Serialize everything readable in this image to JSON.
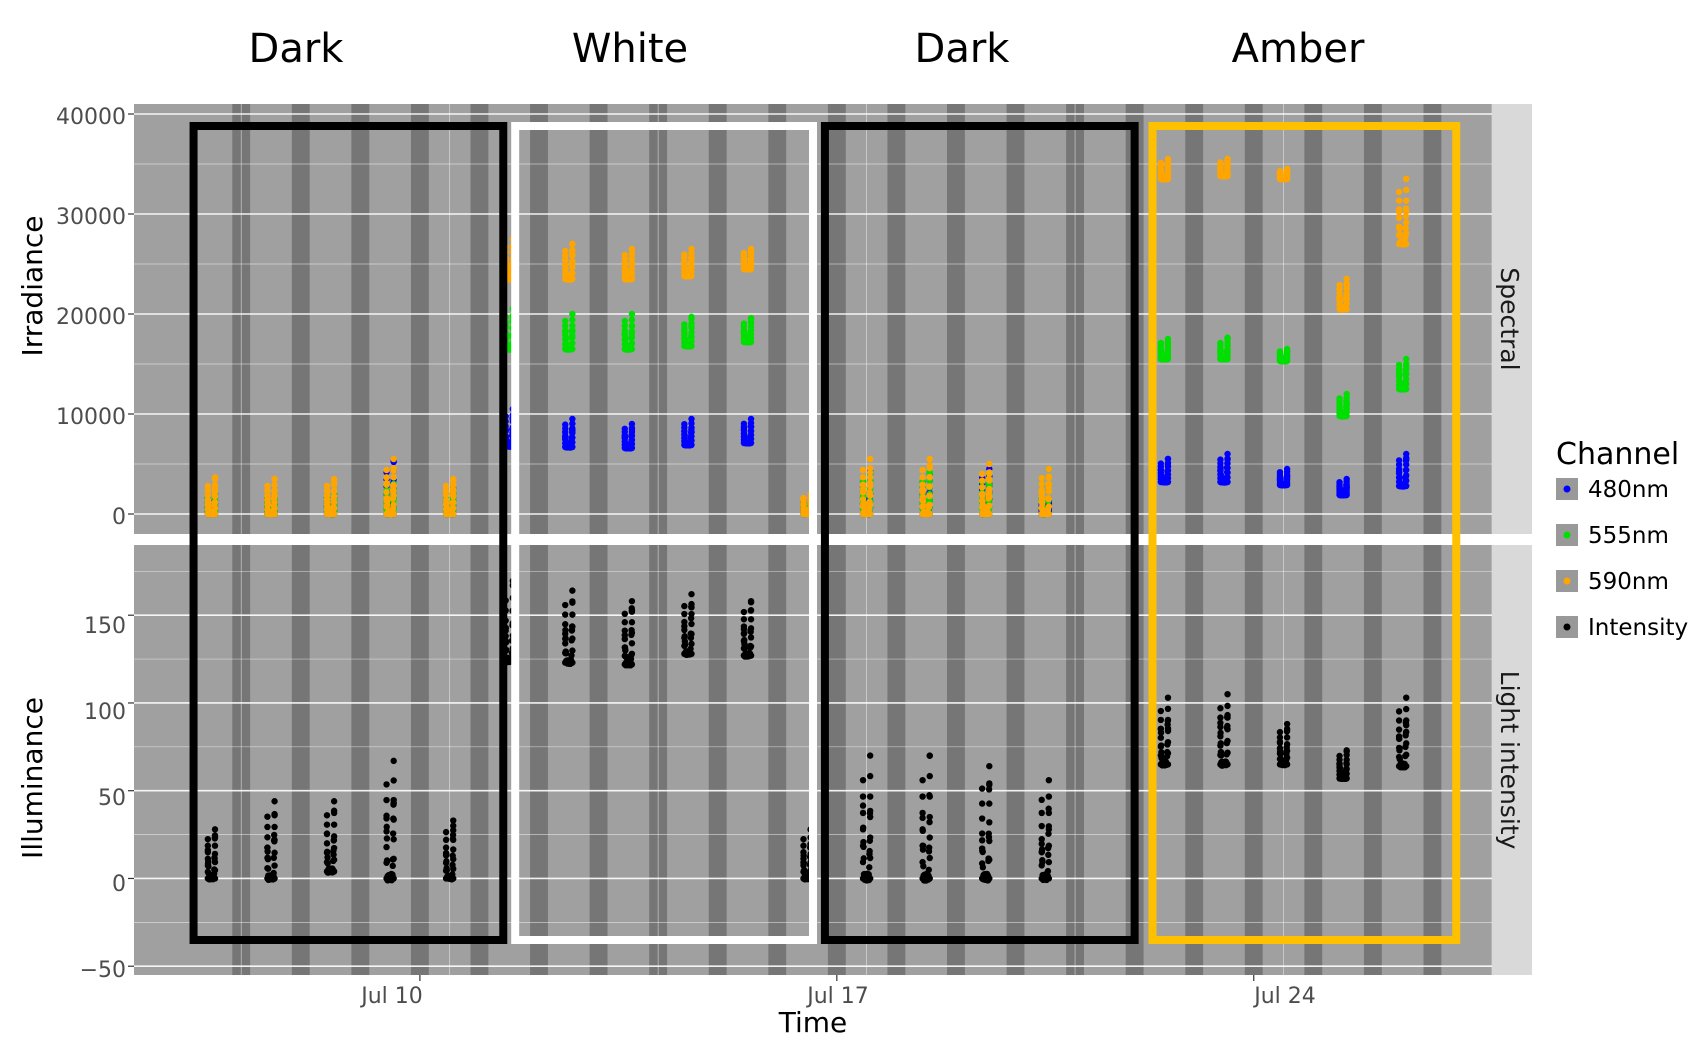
{
  "chart_data": {
    "type": "scatter",
    "phases": [
      {
        "label": "Dark",
        "start_day": 6.2,
        "end_day": 11.4,
        "color": "#000000"
      },
      {
        "label": "White",
        "start_day": 11.6,
        "end_day": 16.6,
        "color": "#ffffff"
      },
      {
        "label": "Dark",
        "start_day": 16.8,
        "end_day": 22.0,
        "color": "#000000"
      },
      {
        "label": "Amber",
        "start_day": 22.3,
        "end_day": 27.4,
        "color": "#ffc000"
      }
    ],
    "x_axis": {
      "title": "Time",
      "range_days": [
        5.2,
        28.0
      ],
      "ticks": [
        {
          "day": 10,
          "label": "Jul 10"
        },
        {
          "day": 17,
          "label": "Jul 17"
        },
        {
          "day": 24,
          "label": "Jul 24"
        }
      ]
    },
    "night_bands": [
      [
        6.85,
        7.15
      ],
      [
        7.85,
        8.15
      ],
      [
        8.85,
        9.15
      ],
      [
        9.85,
        10.15
      ],
      [
        10.85,
        11.15
      ],
      [
        11.85,
        12.15
      ],
      [
        12.85,
        13.15
      ],
      [
        13.85,
        14.15
      ],
      [
        14.85,
        15.15
      ],
      [
        15.85,
        16.15
      ],
      [
        16.85,
        17.15
      ],
      [
        17.85,
        18.15
      ],
      [
        18.85,
        19.15
      ],
      [
        19.85,
        20.15
      ],
      [
        20.85,
        21.15
      ],
      [
        21.85,
        22.15
      ],
      [
        22.85,
        23.15
      ],
      [
        23.85,
        24.15
      ],
      [
        24.85,
        25.15
      ],
      [
        25.85,
        26.15
      ],
      [
        26.85,
        27.15
      ]
    ],
    "facets": [
      {
        "strip": "Spectral",
        "ylabel": "Irradiance",
        "ylim": [
          -2000,
          41000
        ],
        "yticks": [
          0,
          10000,
          20000,
          30000,
          40000
        ],
        "tick_labels": [
          "0",
          "10000",
          "20000",
          "30000",
          "40000"
        ]
      },
      {
        "strip": "Light intensity",
        "ylabel": "Illuminance",
        "ylim": [
          -55,
          190
        ],
        "yticks": [
          -50,
          0,
          50,
          100,
          150
        ],
        "tick_labels": [
          "−50",
          "0",
          "50",
          "100",
          "150"
        ]
      }
    ],
    "series": [
      {
        "name": "480nm",
        "color": "#0000ff",
        "facet": 0,
        "daily_base": [
          0,
          0,
          0,
          0,
          0,
          6800,
          6700,
          6600,
          6900,
          7100,
          0,
          0,
          0,
          0,
          0,
          3200,
          3200,
          2900,
          1900,
          2800
        ],
        "daily_peak": [
          2000,
          2000,
          2000,
          5200,
          2500,
          10500,
          9500,
          9000,
          9500,
          9500,
          1500,
          4000,
          4000,
          4500,
          1500,
          5500,
          6000,
          4500,
          3500,
          6000
        ]
      },
      {
        "name": "555nm",
        "color": "#00e000",
        "facet": 0,
        "daily_base": [
          0,
          0,
          0,
          0,
          0,
          16500,
          16500,
          16500,
          16800,
          17200,
          0,
          0,
          0,
          0,
          0,
          15500,
          15500,
          15300,
          9800,
          12500
        ],
        "daily_peak": [
          2000,
          2000,
          2000,
          3000,
          2500,
          20500,
          20000,
          20000,
          19500,
          19500,
          1500,
          4000,
          4000,
          4000,
          4500,
          17500,
          17500,
          16500,
          12000,
          15500
        ]
      },
      {
        "name": "590nm",
        "color": "#ffa500",
        "facet": 0,
        "daily_base": [
          0,
          0,
          0,
          0,
          0,
          23500,
          23500,
          23500,
          23800,
          24500,
          0,
          0,
          0,
          0,
          0,
          33500,
          33800,
          33500,
          20500,
          27000
        ],
        "daily_peak": [
          3500,
          3500,
          3500,
          5500,
          3500,
          27500,
          27000,
          26500,
          26500,
          26500,
          2000,
          5500,
          5500,
          5000,
          4500,
          35500,
          35500,
          34500,
          23500,
          33500
        ]
      },
      {
        "name": "Intensity",
        "color": "#000000",
        "facet": 1,
        "daily_base": [
          0,
          0,
          4,
          0,
          0,
          124,
          123,
          122,
          128,
          127,
          0,
          0,
          0,
          0,
          0,
          65,
          65,
          65,
          57,
          64
        ],
        "daily_peak": [
          28,
          44,
          44,
          67,
          33,
          167,
          164,
          158,
          162,
          158,
          28,
          70,
          70,
          64,
          56,
          103,
          105,
          88,
          73,
          103
        ]
      }
    ],
    "day_centers": [
      6.5,
      7.5,
      8.5,
      9.5,
      10.5,
      11.5,
      12.5,
      13.5,
      14.5,
      15.5,
      16.5,
      17.5,
      18.5,
      19.5,
      20.5,
      22.5,
      23.5,
      24.5,
      25.5,
      26.5
    ],
    "legend": {
      "title": "Channel",
      "placement": "right",
      "items": [
        {
          "label": "480nm",
          "color": "#0000ff"
        },
        {
          "label": "555nm",
          "color": "#00e000"
        },
        {
          "label": "590nm",
          "color": "#ffa500"
        },
        {
          "label": "Intensity",
          "color": "#000000"
        }
      ]
    }
  }
}
